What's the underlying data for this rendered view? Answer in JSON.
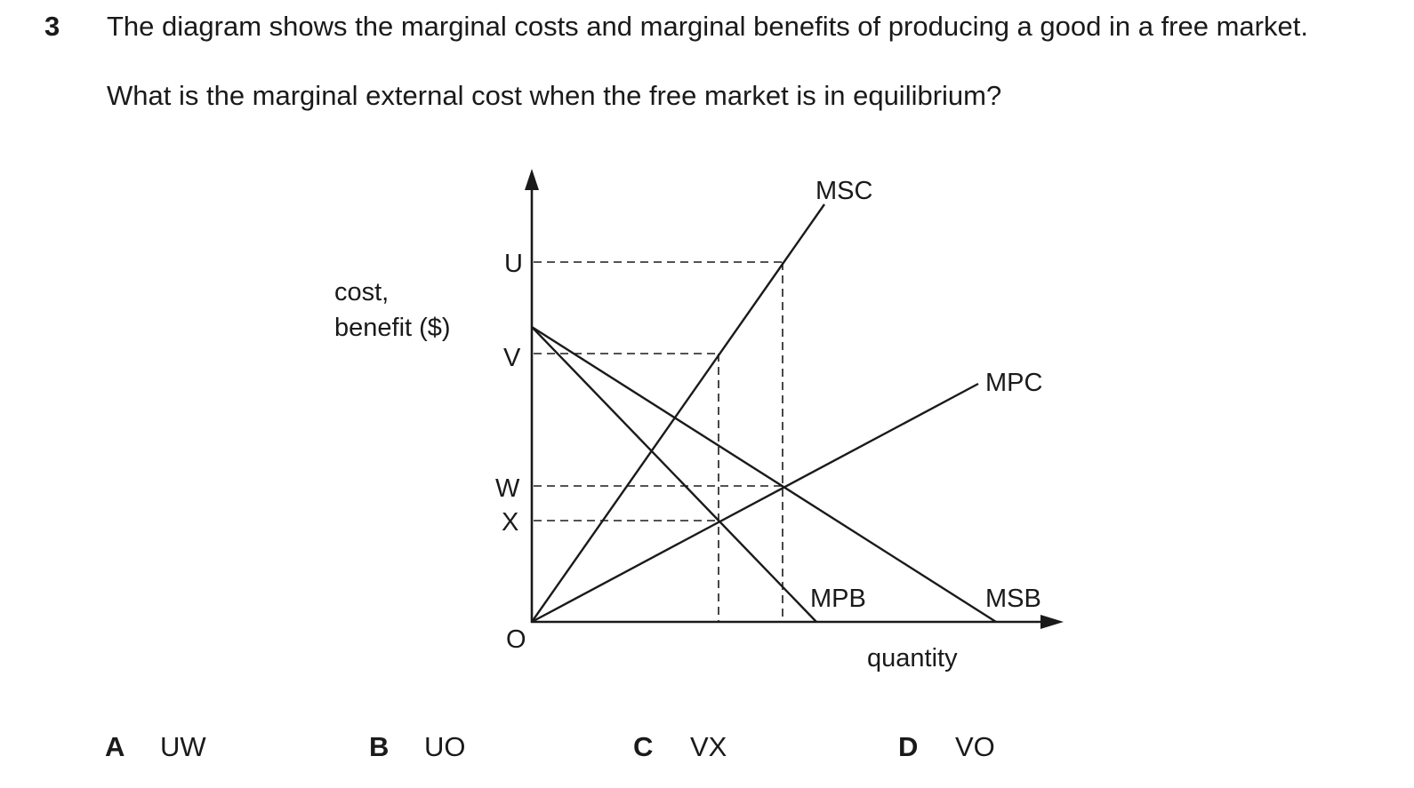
{
  "question": {
    "number": "3",
    "line1": "The diagram shows the marginal costs and marginal benefits of producing a good in a free market.",
    "line2": "What is the marginal external cost when the free market is in equilibrium?"
  },
  "diagram": {
    "y_axis_label_line1": "cost,",
    "y_axis_label_line2": "benefit ($)",
    "x_axis_label": "quantity",
    "origin_label": "O",
    "y_points": [
      "U",
      "V",
      "W",
      "X"
    ],
    "curves": {
      "msc": "MSC",
      "mpc": "MPC",
      "mpb": "MPB",
      "msb": "MSB"
    }
  },
  "options": [
    {
      "letter": "A",
      "text": "UW"
    },
    {
      "letter": "B",
      "text": "UO"
    },
    {
      "letter": "C",
      "text": "VX"
    },
    {
      "letter": "D",
      "text": "VO"
    }
  ]
}
